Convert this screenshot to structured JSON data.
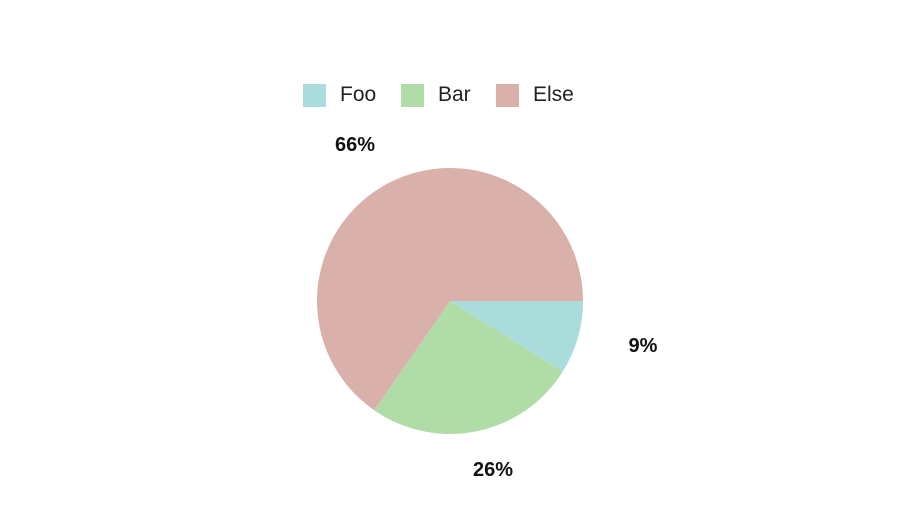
{
  "chart_data": {
    "type": "pie",
    "title": "",
    "legend_position": "top-center",
    "slices": [
      {
        "label": "Foo",
        "value": 9,
        "display": "9%",
        "color": "#aadcdc"
      },
      {
        "label": "Bar",
        "value": 26,
        "display": "26%",
        "color": "#b0dca8"
      },
      {
        "label": "Else",
        "value": 66,
        "display": "66%",
        "color": "#dab0aa"
      }
    ]
  }
}
